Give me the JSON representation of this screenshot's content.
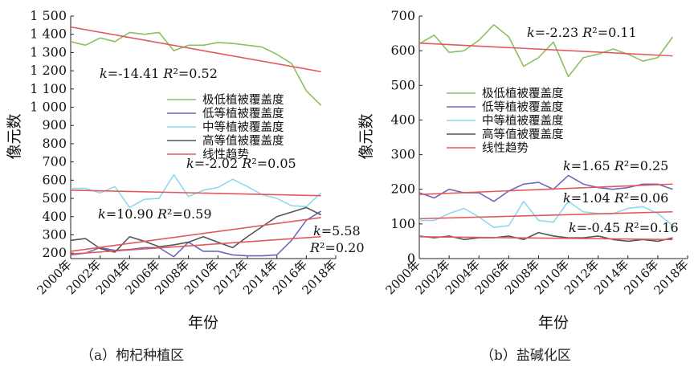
{
  "chart_data": [
    {
      "type": "line",
      "caption": "（a）枸杞种植区",
      "xlabel": "年份",
      "ylabel": "像元数",
      "ylim": [
        170,
        1500
      ],
      "yticks": [
        200,
        300,
        400,
        500,
        600,
        700,
        800,
        900,
        1000,
        1100,
        1200,
        1300,
        1400,
        1500
      ],
      "ytick_labels": [
        "200",
        "300",
        "400",
        "500",
        "600",
        "700",
        "800",
        "900",
        "1 000",
        "1 100",
        "1 200",
        "1 300",
        "1 400",
        "1 500"
      ],
      "x": [
        2000,
        2001,
        2002,
        2003,
        2004,
        2005,
        2006,
        2007,
        2008,
        2009,
        2010,
        2011,
        2012,
        2013,
        2014,
        2015,
        2016,
        2017
      ],
      "xlim": [
        2000,
        2018
      ],
      "xticks": [
        2000,
        2002,
        2004,
        2006,
        2008,
        2010,
        2012,
        2014,
        2016,
        2018
      ],
      "xtick_labels": [
        "2000年",
        "2002年",
        "2004年",
        "2006年",
        "2008年",
        "2010年",
        "2012年",
        "2014年",
        "2016年",
        "2018年"
      ],
      "legend": [
        "极低植被覆盖度",
        "低等植被覆盖度",
        "中等植被覆盖度",
        "高等值被覆盖度",
        "线性趋势"
      ],
      "series": [
        {
          "name": "极低植被覆盖度",
          "color": "#8cc063",
          "values": [
            1360,
            1340,
            1380,
            1360,
            1410,
            1400,
            1410,
            1310,
            1340,
            1340,
            1355,
            1350,
            1340,
            1330,
            1290,
            1240,
            1090,
            1010
          ]
        },
        {
          "name": "低等植被覆盖度",
          "color": "#6a6ab8",
          "values": [
            190,
            200,
            230,
            215,
            220,
            230,
            230,
            180,
            260,
            210,
            210,
            190,
            185,
            185,
            190,
            270,
            380,
            430
          ]
        },
        {
          "name": "中等植被覆盖度",
          "color": "#8fd8ee",
          "values": [
            555,
            555,
            530,
            565,
            450,
            495,
            500,
            630,
            510,
            545,
            560,
            605,
            565,
            520,
            500,
            460,
            455,
            530
          ]
        },
        {
          "name": "高等值被覆盖度",
          "color": "#555555",
          "values": [
            270,
            280,
            225,
            205,
            290,
            265,
            235,
            245,
            260,
            290,
            260,
            230,
            290,
            345,
            400,
            425,
            450,
            410
          ]
        }
      ],
      "trends": [
        {
          "color": "#e05a5a",
          "from": [
            2000,
            1440
          ],
          "to": [
            2017,
            1195
          ],
          "label": "k=-14.41 R²=0.52"
        },
        {
          "color": "#e05a5a",
          "from": [
            2000,
            545
          ],
          "to": [
            2017,
            515
          ],
          "label": "k=-2.02 R²=0.05"
        },
        {
          "color": "#e05a5a",
          "from": [
            2000,
            210
          ],
          "to": [
            2017,
            395
          ],
          "label": "k=10.90 R²=0.59"
        },
        {
          "color": "#e05a5a",
          "from": [
            2000,
            195
          ],
          "to": [
            2017,
            290
          ],
          "label": "k=5.58 R²=0.20"
        }
      ]
    },
    {
      "type": "line",
      "caption": "（b）盐碱化区",
      "xlabel": "年份",
      "ylabel": "像元数",
      "ylim": [
        0,
        700
      ],
      "yticks": [
        0,
        100,
        200,
        300,
        400,
        500,
        600,
        700
      ],
      "ytick_labels": [
        "0",
        "100",
        "200",
        "300",
        "400",
        "500",
        "600",
        "700"
      ],
      "x": [
        2000,
        2001,
        2002,
        2003,
        2004,
        2005,
        2006,
        2007,
        2008,
        2009,
        2010,
        2011,
        2012,
        2013,
        2014,
        2015,
        2016,
        2017
      ],
      "xlim": [
        2000,
        2018
      ],
      "xticks": [
        2000,
        2002,
        2004,
        2006,
        2008,
        2010,
        2012,
        2014,
        2016,
        2018
      ],
      "xtick_labels": [
        "2000年",
        "2002年",
        "2004年",
        "2006年",
        "2008年",
        "2010年",
        "2012年",
        "2014年",
        "2016年",
        "2018年"
      ],
      "legend": [
        "极低植被覆盖度",
        "低等植被覆盖度",
        "中等植被覆盖度",
        "高等值被覆盖度",
        "线性趋势"
      ],
      "series": [
        {
          "name": "极低植被覆盖度",
          "color": "#8cc063",
          "values": [
            620,
            645,
            595,
            600,
            630,
            675,
            640,
            555,
            580,
            625,
            525,
            580,
            590,
            605,
            590,
            570,
            580,
            640
          ]
        },
        {
          "name": "低等植被覆盖度",
          "color": "#6a6ab8",
          "values": [
            190,
            175,
            200,
            190,
            190,
            165,
            195,
            215,
            220,
            200,
            240,
            215,
            205,
            200,
            205,
            215,
            215,
            200
          ]
        },
        {
          "name": "中等植被覆盖度",
          "color": "#8fd8ee",
          "values": [
            110,
            110,
            130,
            145,
            120,
            90,
            95,
            165,
            110,
            105,
            165,
            135,
            130,
            130,
            145,
            150,
            130,
            95
          ]
        },
        {
          "name": "高等值被覆盖度",
          "color": "#555555",
          "values": [
            65,
            60,
            65,
            55,
            60,
            60,
            65,
            55,
            75,
            65,
            60,
            60,
            65,
            55,
            50,
            55,
            50,
            60
          ]
        }
      ],
      "trends": [
        {
          "color": "#e05a5a",
          "from": [
            2000,
            622
          ],
          "to": [
            2017,
            585
          ],
          "label": "k=-2.23 R²=0.11"
        },
        {
          "color": "#e05a5a",
          "from": [
            2000,
            185
          ],
          "to": [
            2017,
            215
          ],
          "label": "k=1.65 R²=0.25"
        },
        {
          "color": "#e05a5a",
          "from": [
            2000,
            115
          ],
          "to": [
            2017,
            135
          ],
          "label": "k=1.04 R²=0.06"
        },
        {
          "color": "#e05a5a",
          "from": [
            2000,
            63
          ],
          "to": [
            2017,
            55
          ],
          "label": "k=-0.45 R²=0.16"
        }
      ]
    }
  ]
}
